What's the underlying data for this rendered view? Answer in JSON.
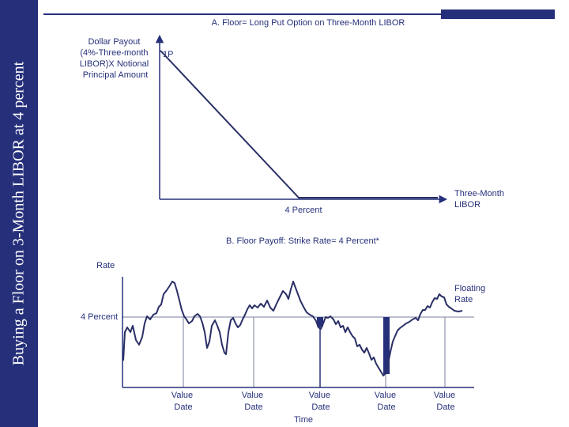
{
  "slide": {
    "side_title": "Buying a Floor on 3-Month LIBOR at 4 percent"
  },
  "panel_a": {
    "title": "A.  Floor= Long Put Option on Three-Month LIBOR",
    "y_label": [
      "Dollar Payout",
      "(4%-Three-month",
      "LIBOR)X Notional",
      "Principal Amount"
    ],
    "payoff_label": "1P",
    "strike_label": "4 Percent",
    "x_label": [
      "Three-Month",
      "LIBOR"
    ]
  },
  "panel_b": {
    "title": "B.  Floor Payoff: Strike Rate= 4 Percent*",
    "y_label": "Rate",
    "strike_label": "4 Percent",
    "series_label": [
      "Floating",
      "Rate"
    ],
    "value_date_labels": [
      [
        "Value",
        "Date"
      ],
      [
        "Value",
        "Date"
      ],
      [
        "Value",
        "Date"
      ],
      [
        "Value",
        "Date"
      ],
      [
        "Value",
        "Date"
      ]
    ],
    "x_label": "Time"
  },
  "colors": {
    "navy": "#26307a",
    "line": "#2a2f66",
    "grid": "#7a809e"
  }
}
